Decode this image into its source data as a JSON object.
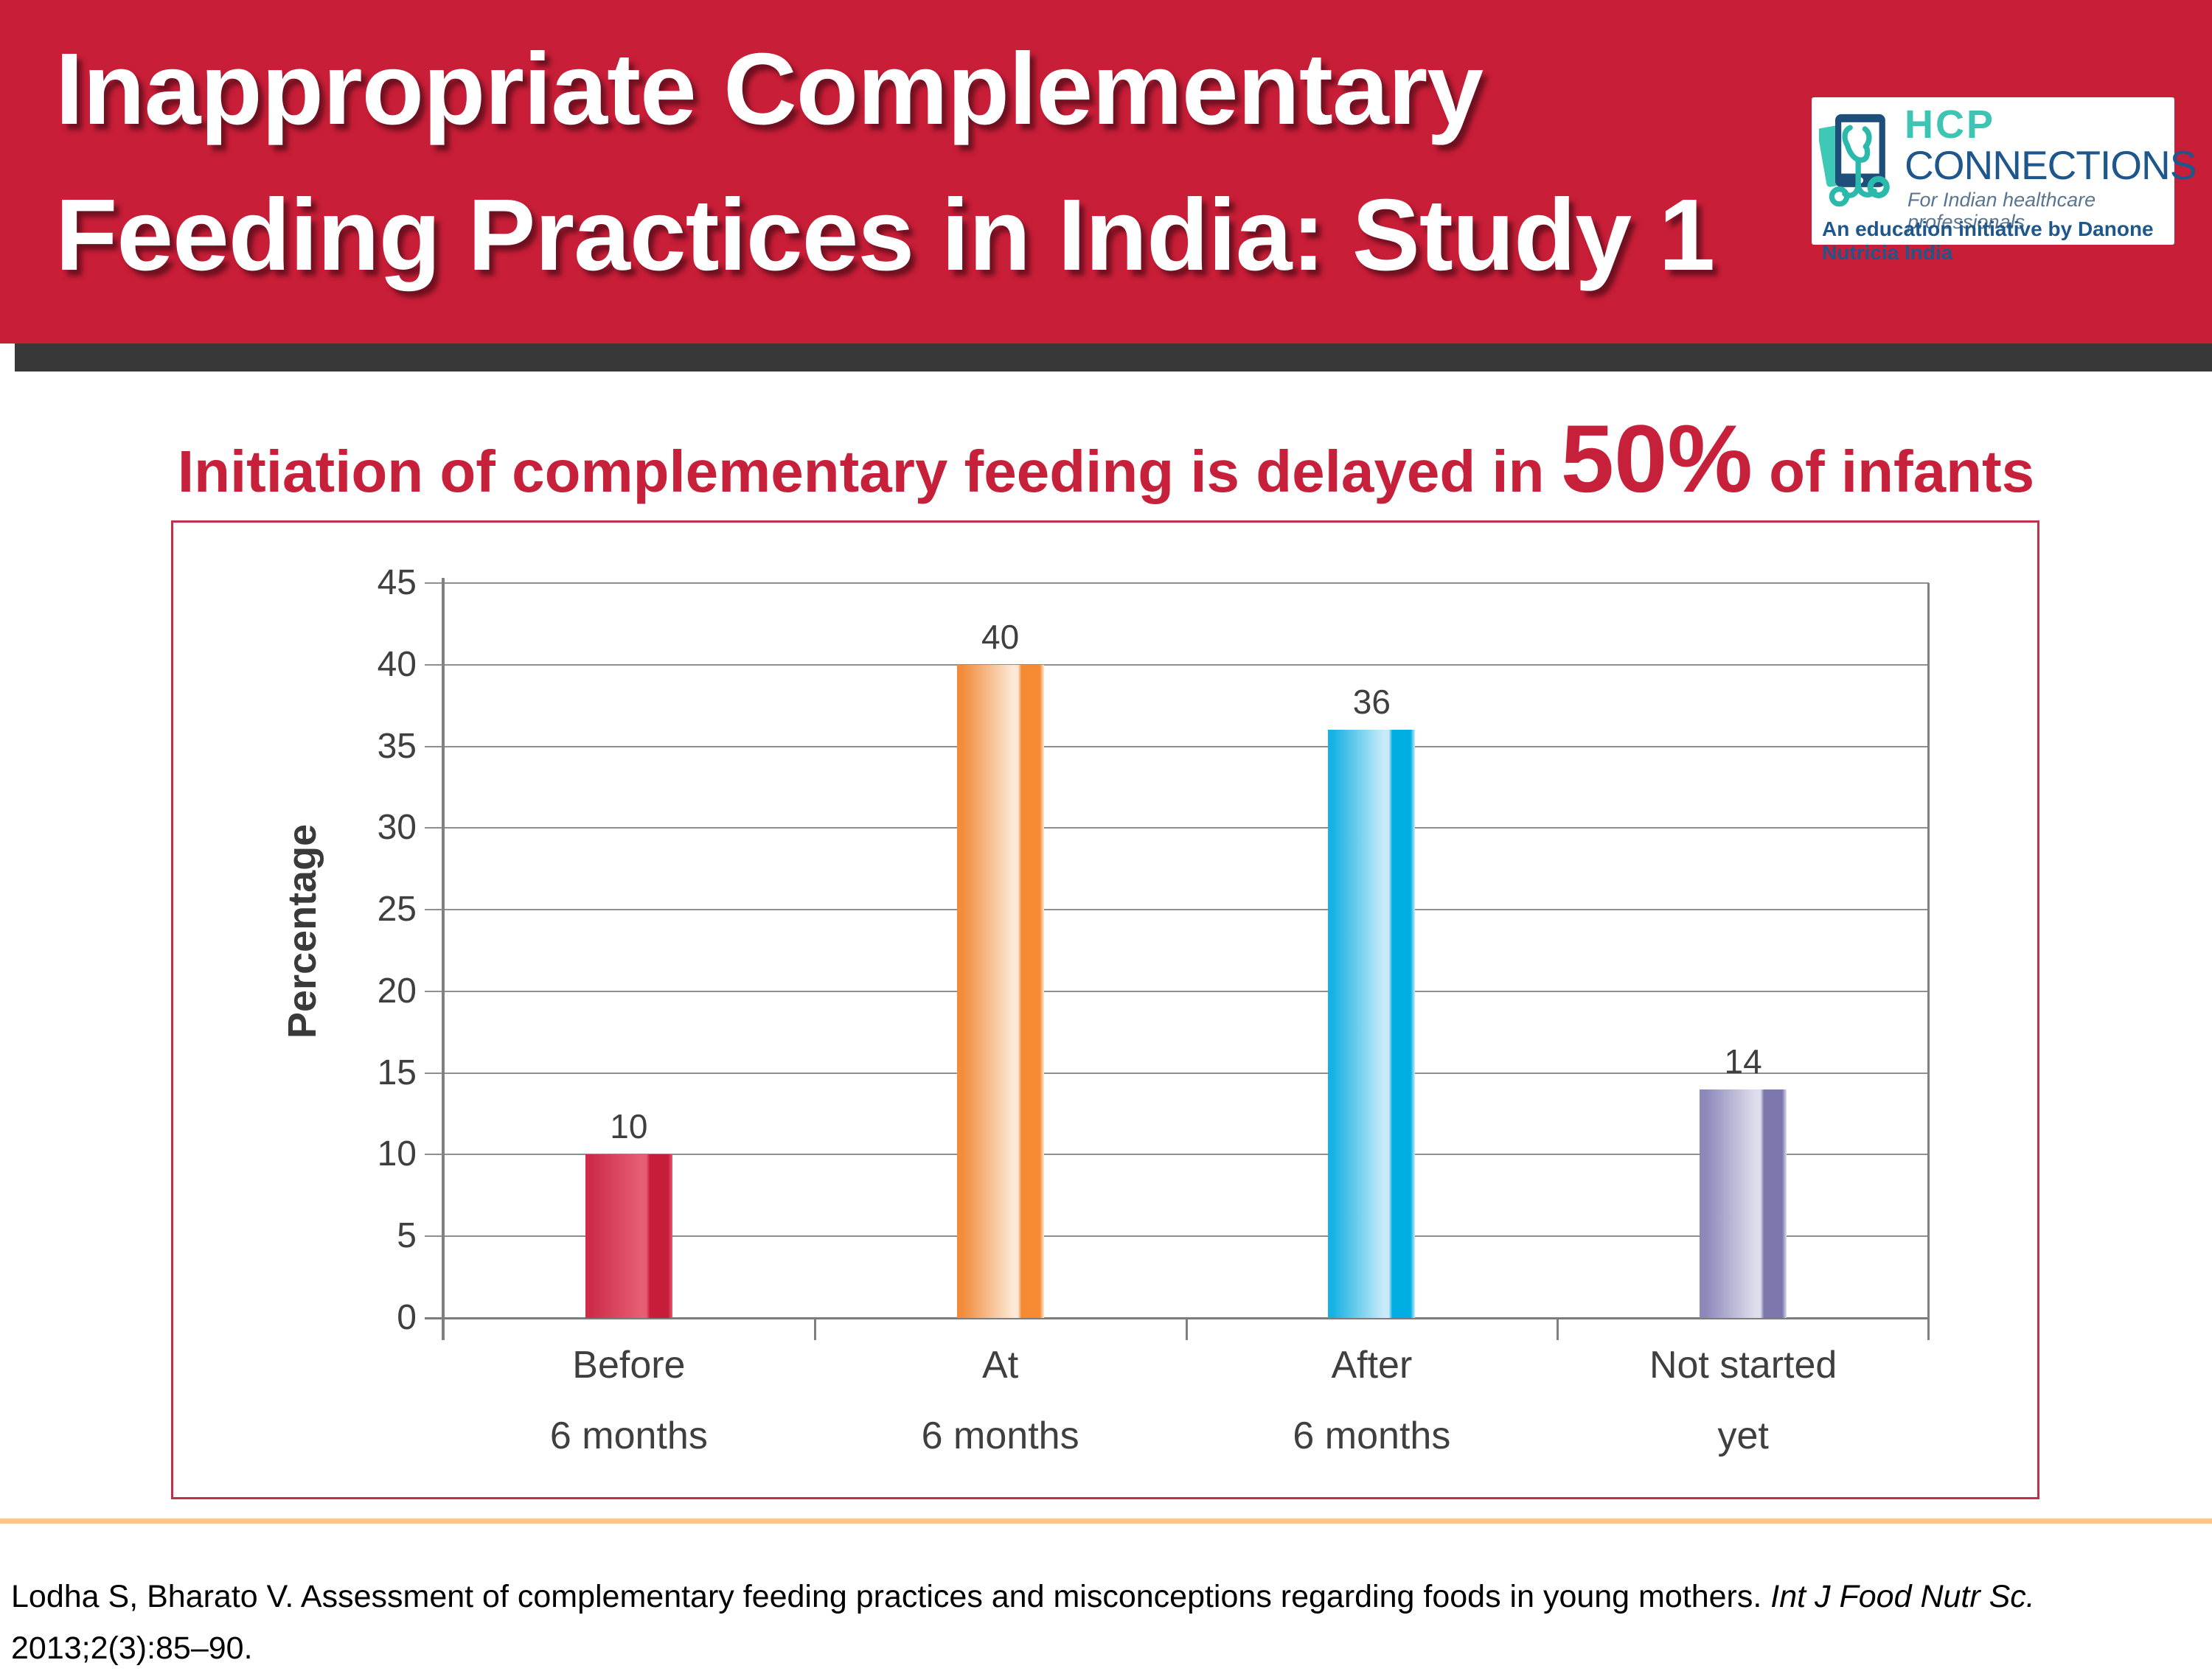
{
  "header": {
    "title_line1": "Inappropriate Complementary",
    "title_line2": "Feeding Practices in India: Study 1",
    "bg_color": "#C91E38",
    "logo": {
      "brand_top": "HCP",
      "brand_bottom": "CONNECTIONS",
      "tagline": "For Indian healthcare professionals",
      "initiative": "An education initiative by Danone Nutricia India",
      "teal": "#3EC4B2",
      "blue": "#1E578B"
    }
  },
  "subtitle": {
    "prefix": "Initiation of complementary feeding is delayed in ",
    "highlight": "50%",
    "suffix": " of infants",
    "color": "#C6203A"
  },
  "chart_data": {
    "type": "bar",
    "title": "Initiation of complementary feeding is delayed in 50% of infants",
    "categories": [
      "Before 6 months",
      "At 6 months",
      "After 6 months",
      "Not started yet"
    ],
    "values": [
      10,
      40,
      36,
      14
    ],
    "xlabel": "",
    "ylabel": "Percentage",
    "ylim": [
      0,
      45
    ],
    "ytick_step": 5,
    "yticks": [
      45,
      40,
      35,
      30,
      25,
      20,
      15,
      10,
      5,
      0
    ],
    "grid": true,
    "legend": "none",
    "bars": [
      {
        "label_line1": "Before",
        "label_line2": "6 months",
        "value": 10,
        "edge": "#CE2C48",
        "light": "#E75E73",
        "stripe": "#C71C3A"
      },
      {
        "label_line1": "At",
        "label_line2": "6 months",
        "value": 40,
        "edge": "#F28B3B",
        "light": "#FCE8D5",
        "stripe": "#F48A32"
      },
      {
        "label_line1": "After",
        "label_line2": "6 months",
        "value": 36,
        "edge": "#17B2E4",
        "light": "#C9EBF9",
        "stripe": "#00AEE4"
      },
      {
        "label_line1": "Not started",
        "label_line2": "yet",
        "value": 14,
        "edge": "#8B88BA",
        "light": "#DEDDEC",
        "stripe": "#7C78AD"
      }
    ]
  },
  "footer": {
    "citation_main": "Lodha S, Bharato V. Assessment of complementary feeding practices and misconceptions regarding foods in young mothers. ",
    "citation_journal": "Int J Food Nutr Sc.",
    "citation_tail": "2013;2(3):85–90."
  }
}
